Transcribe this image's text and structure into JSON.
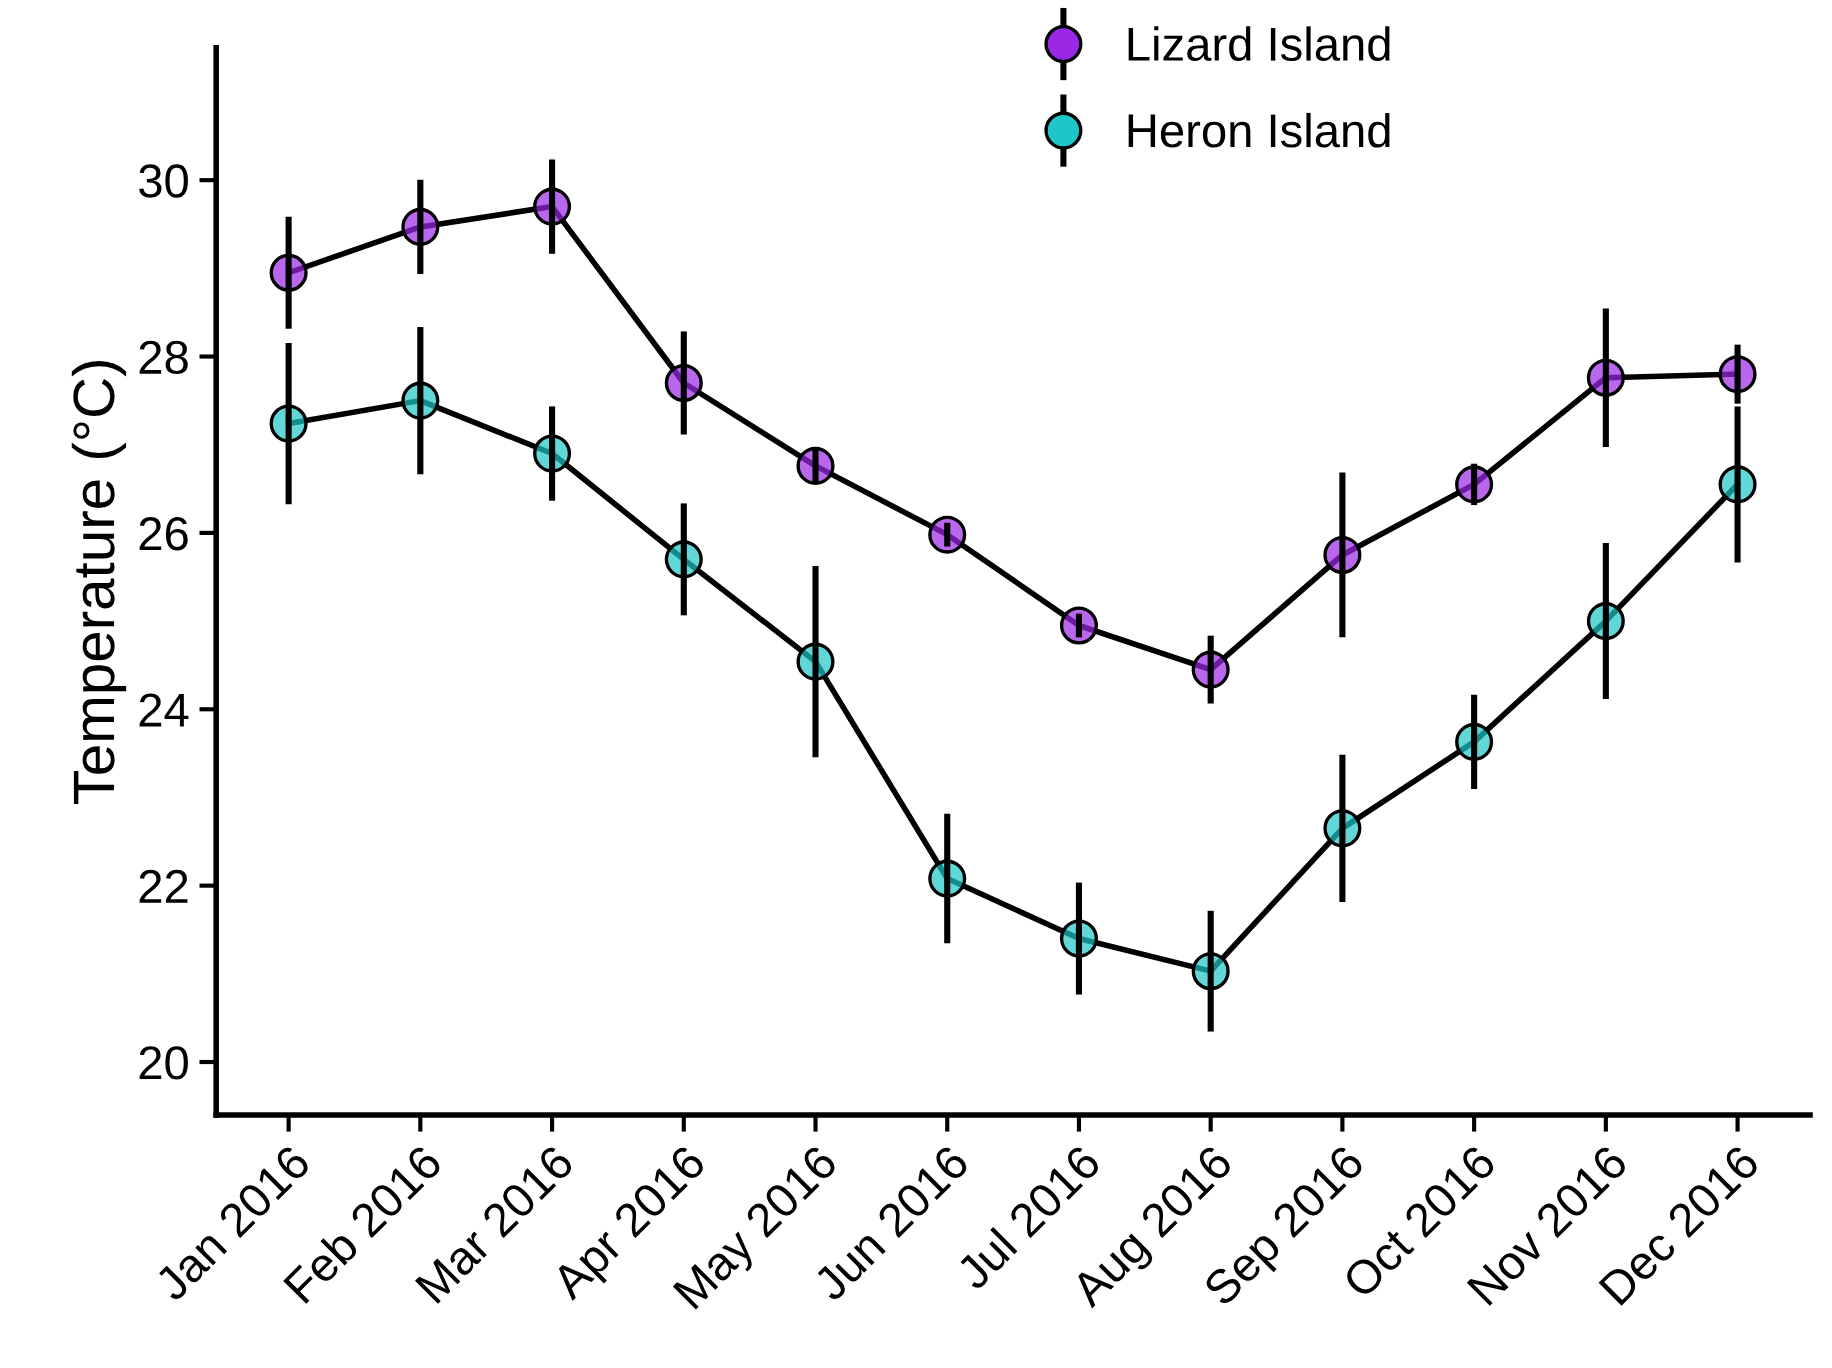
{
  "chart_data": {
    "type": "line",
    "ylabel": "Temperature (°C)",
    "categories": [
      "Jan 2016",
      "Feb 2016",
      "Mar 2016",
      "Apr 2016",
      "May 2016",
      "Jun 2016",
      "Jul 2016",
      "Aug 2016",
      "Sep 2016",
      "Oct 2016",
      "Nov 2016",
      "Dec 2016"
    ],
    "series": [
      {
        "name": "Lizard Island",
        "color": "#9b27e6",
        "values": [
          28.95,
          29.47,
          29.7,
          27.7,
          26.76,
          25.98,
          24.95,
          24.45,
          25.75,
          26.55,
          27.76,
          27.8
        ],
        "errors": [
          0.6,
          0.5,
          0.5,
          0.55,
          0.15,
          0.1,
          0.1,
          0.35,
          0.9,
          0.2,
          0.75,
          0.3
        ]
      },
      {
        "name": "Heron Island",
        "color": "#1ec6c8",
        "values": [
          27.24,
          27.5,
          26.9,
          25.7,
          24.54,
          22.08,
          21.4,
          21.03,
          22.65,
          23.63,
          25.0,
          26.55
        ],
        "errors": [
          0.88,
          0.8,
          0.5,
          0.6,
          1.05,
          0.7,
          0.6,
          0.65,
          0.8,
          0.5,
          0.85,
          0.85
        ]
      }
    ],
    "ylim": [
      19.4,
      31.5
    ],
    "yticks": [
      20,
      22,
      24,
      26,
      28,
      30
    ],
    "grid": false,
    "legend": "top",
    "marker": "circle",
    "line_style": "solid"
  }
}
